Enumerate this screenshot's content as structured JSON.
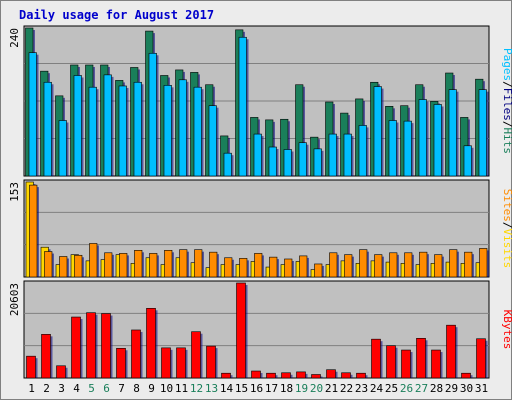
{
  "title": "Daily usage for August 2017",
  "colors": {
    "pages": "#1a7f5a",
    "files": "#00bfff",
    "hits": "#1a7f5a",
    "sites": "#ff8c00",
    "visits": "#ffd700",
    "kbytes": "#ff0000",
    "panel": "#c0c0c0",
    "grid": "#808080",
    "day_weekday": "#000000",
    "day_weekend": "#1a7f5a"
  },
  "chart_data": [
    {
      "type": "bar",
      "panel": "hits-files-pages",
      "ymax_label": "240",
      "ylim": [
        0,
        240
      ],
      "axis_label_parts": [
        "Pages",
        "/",
        "Files",
        "/",
        "Hits"
      ],
      "categories": [
        "1",
        "2",
        "3",
        "4",
        "5",
        "6",
        "7",
        "8",
        "9",
        "10",
        "11",
        "12",
        "13",
        "14",
        "15",
        "16",
        "17",
        "18",
        "19",
        "20",
        "21",
        "22",
        "23",
        "24",
        "25",
        "26",
        "27",
        "28",
        "29",
        "30",
        "31"
      ],
      "series": [
        {
          "name": "Hits",
          "values": [
            240,
            170,
            130,
            180,
            180,
            180,
            155,
            176,
            235,
            163,
            172,
            168,
            148,
            65,
            237,
            95,
            91,
            92,
            148,
            63,
            120,
            102,
            125,
            152,
            113,
            114,
            148,
            121,
            167,
            95,
            157
          ]
        },
        {
          "name": "Files",
          "values": [
            200,
            152,
            90,
            163,
            144,
            164,
            146,
            152,
            199,
            147,
            156,
            144,
            114,
            37,
            225,
            68,
            47,
            43,
            54,
            44,
            68,
            68,
            82,
            145,
            90,
            89,
            124,
            116,
            140,
            49,
            140
          ]
        },
        {
          "name": "Pages",
          "values": [
            0,
            0,
            0,
            0,
            0,
            0,
            0,
            0,
            0,
            0,
            0,
            0,
            0,
            0,
            0,
            0,
            0,
            0,
            0,
            0,
            0,
            0,
            0,
            0,
            0,
            0,
            0,
            0,
            0,
            0,
            0
          ]
        }
      ]
    },
    {
      "type": "bar",
      "panel": "visits-sites",
      "ymax_label": "153",
      "ylim": [
        0,
        153
      ],
      "axis_label_parts": [
        "Sites",
        "/",
        "Visits"
      ],
      "categories": [
        "1",
        "2",
        "3",
        "4",
        "5",
        "6",
        "7",
        "8",
        "9",
        "10",
        "11",
        "12",
        "13",
        "14",
        "15",
        "16",
        "17",
        "18",
        "19",
        "20",
        "21",
        "22",
        "23",
        "24",
        "25",
        "26",
        "27",
        "28",
        "29",
        "30",
        "31"
      ],
      "series": [
        {
          "name": "Visits",
          "values": [
            153,
            48,
            20,
            36,
            26,
            28,
            36,
            22,
            31,
            20,
            31,
            23,
            15,
            20,
            20,
            25,
            16,
            20,
            25,
            12,
            20,
            26,
            22,
            26,
            24,
            22,
            20,
            22,
            24,
            22,
            23
          ]
        },
        {
          "name": "Sites",
          "values": [
            148,
            41,
            33,
            35,
            54,
            39,
            38,
            43,
            38,
            43,
            44,
            44,
            40,
            31,
            30,
            38,
            32,
            29,
            34,
            21,
            39,
            36,
            44,
            36,
            39,
            39,
            40,
            36,
            44,
            40,
            46
          ]
        }
      ]
    },
    {
      "type": "bar",
      "panel": "kbytes",
      "ymax_label": "20603",
      "ylim": [
        0,
        20603
      ],
      "axis_label_parts": [
        "KBytes"
      ],
      "categories": [
        "1",
        "2",
        "3",
        "4",
        "5",
        "6",
        "7",
        "8",
        "9",
        "10",
        "11",
        "12",
        "13",
        "14",
        "15",
        "16",
        "17",
        "18",
        "19",
        "20",
        "21",
        "22",
        "23",
        "24",
        "25",
        "26",
        "27",
        "28",
        "29",
        "30",
        "31"
      ],
      "series": [
        {
          "name": "KBytes",
          "values": [
            4733,
            9468,
            2651,
            13222,
            14167,
            13978,
            6443,
            10416,
            15113,
            6537,
            6537,
            10038,
            6916,
            1040,
            20603,
            1514,
            1040,
            1135,
            1324,
            757,
            1797,
            1135,
            1040,
            8421,
            7002,
            6065,
            8610,
            6065,
            11453,
            1040,
            8515
          ]
        }
      ]
    }
  ],
  "weekend_days": [
    "5",
    "6",
    "12",
    "13",
    "19",
    "20",
    "26",
    "27"
  ]
}
